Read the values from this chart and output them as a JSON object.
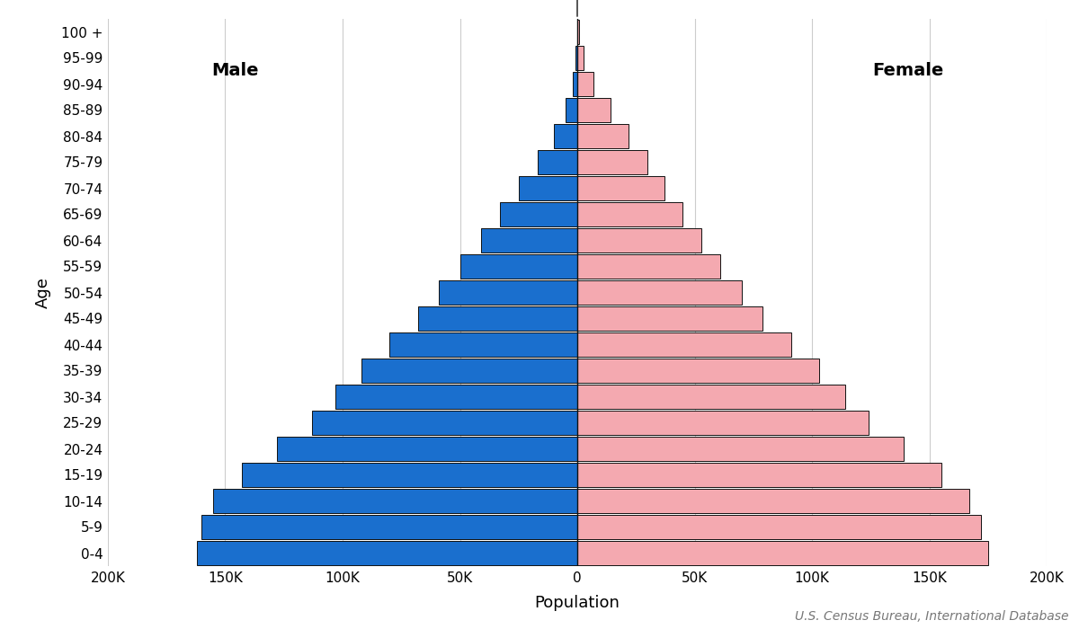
{
  "age_groups": [
    "0-4",
    "5-9",
    "10-14",
    "15-19",
    "20-24",
    "25-29",
    "30-34",
    "35-39",
    "40-44",
    "45-49",
    "50-54",
    "55-59",
    "60-64",
    "65-69",
    "70-74",
    "75-79",
    "80-84",
    "85-89",
    "90-94",
    "95-99",
    "100 +"
  ],
  "male": [
    162000,
    160000,
    155000,
    143000,
    128000,
    113000,
    103000,
    92000,
    80000,
    68000,
    59000,
    50000,
    41000,
    33000,
    25000,
    17000,
    10000,
    5000,
    2000,
    700,
    150
  ],
  "female": [
    175000,
    172000,
    167000,
    155000,
    139000,
    124000,
    114000,
    103000,
    91000,
    79000,
    70000,
    61000,
    53000,
    45000,
    37000,
    30000,
    22000,
    14000,
    7000,
    2500,
    700
  ],
  "male_color": "#1a6fce",
  "female_color": "#f4a9b0",
  "bar_edgecolor": "#111111",
  "bar_linewidth": 0.7,
  "xlabel": "Population",
  "ylabel": "Age",
  "male_label": "Male",
  "female_label": "Female",
  "xlim": 200000,
  "xtick_values": [
    -200000,
    -150000,
    -100000,
    -50000,
    0,
    50000,
    100000,
    150000,
    200000
  ],
  "xtick_labels": [
    "200K",
    "150K",
    "100K",
    "50K",
    "0",
    "50K",
    "100K",
    "150K",
    "200K"
  ],
  "grid_color": "#cccccc",
  "background_color": "#ffffff",
  "source_text": "U.S. Census Bureau, International Database",
  "source_fontsize": 10,
  "vertical_line_color": "#111111",
  "bar_height": 0.92
}
